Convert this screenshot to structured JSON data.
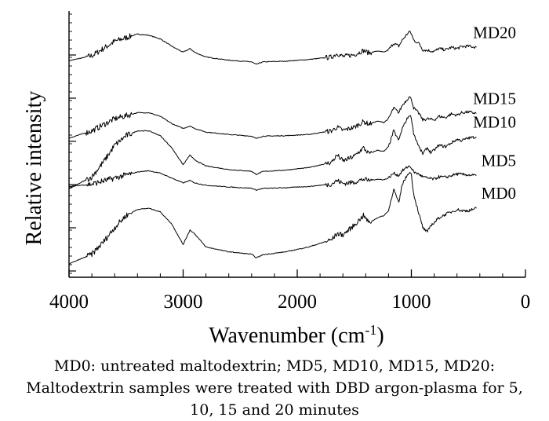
{
  "chart_data": {
    "type": "line",
    "xlabel": "Wavenumber (cm",
    "xlabel_superscript": "-1",
    "xlabel_suffix": ")",
    "ylabel": "Relative intensity",
    "xlim": [
      4000,
      0
    ],
    "x_reversed": true,
    "xticks": [
      4000,
      3000,
      2000,
      1000,
      0
    ],
    "y_units": "relative (arbitrary, stacked with offsets)",
    "grid": false,
    "legend": "none (series labelled directly at right end of each trace)",
    "series": [
      {
        "name": "MD20",
        "color": "#000000",
        "points": [
          [
            4000,
            0.84
          ],
          [
            3800,
            0.86
          ],
          [
            3600,
            0.92
          ],
          [
            3400,
            0.95
          ],
          [
            3300,
            0.945
          ],
          [
            3200,
            0.93
          ],
          [
            3100,
            0.9
          ],
          [
            3000,
            0.875
          ],
          [
            2940,
            0.89
          ],
          [
            2900,
            0.875
          ],
          [
            2800,
            0.855
          ],
          [
            2600,
            0.842
          ],
          [
            2400,
            0.835
          ],
          [
            2360,
            0.825
          ],
          [
            2300,
            0.835
          ],
          [
            2100,
            0.838
          ],
          [
            1900,
            0.845
          ],
          [
            1700,
            0.855
          ],
          [
            1650,
            0.87
          ],
          [
            1600,
            0.857
          ],
          [
            1500,
            0.865
          ],
          [
            1420,
            0.882
          ],
          [
            1370,
            0.872
          ],
          [
            1300,
            0.88
          ],
          [
            1240,
            0.875
          ],
          [
            1200,
            0.885
          ],
          [
            1155,
            0.912
          ],
          [
            1110,
            0.9
          ],
          [
            1080,
            0.925
          ],
          [
            1020,
            0.96
          ],
          [
            1000,
            0.952
          ],
          [
            980,
            0.925
          ],
          [
            930,
            0.91
          ],
          [
            900,
            0.885
          ],
          [
            860,
            0.883
          ],
          [
            800,
            0.878
          ],
          [
            760,
            0.89
          ],
          [
            700,
            0.885
          ],
          [
            650,
            0.895
          ],
          [
            600,
            0.89
          ],
          [
            560,
            0.898
          ],
          [
            500,
            0.9
          ],
          [
            430,
            0.895
          ]
        ]
      },
      {
        "name": "MD15",
        "color": "#000000",
        "points": [
          [
            4000,
            0.52
          ],
          [
            3800,
            0.55
          ],
          [
            3600,
            0.6
          ],
          [
            3400,
            0.625
          ],
          [
            3300,
            0.625
          ],
          [
            3200,
            0.61
          ],
          [
            3100,
            0.58
          ],
          [
            3000,
            0.56
          ],
          [
            2940,
            0.57
          ],
          [
            2900,
            0.56
          ],
          [
            2800,
            0.545
          ],
          [
            2600,
            0.535
          ],
          [
            2400,
            0.528
          ],
          [
            2360,
            0.518
          ],
          [
            2300,
            0.528
          ],
          [
            2100,
            0.53
          ],
          [
            1900,
            0.535
          ],
          [
            1700,
            0.55
          ],
          [
            1650,
            0.565
          ],
          [
            1600,
            0.552
          ],
          [
            1500,
            0.565
          ],
          [
            1420,
            0.588
          ],
          [
            1370,
            0.578
          ],
          [
            1300,
            0.59
          ],
          [
            1240,
            0.585
          ],
          [
            1200,
            0.6
          ],
          [
            1155,
            0.645
          ],
          [
            1110,
            0.625
          ],
          [
            1080,
            0.655
          ],
          [
            1020,
            0.69
          ],
          [
            1000,
            0.682
          ],
          [
            980,
            0.645
          ],
          [
            930,
            0.62
          ],
          [
            900,
            0.595
          ],
          [
            860,
            0.6
          ],
          [
            800,
            0.595
          ],
          [
            760,
            0.61
          ],
          [
            700,
            0.605
          ],
          [
            650,
            0.62
          ],
          [
            600,
            0.615
          ],
          [
            560,
            0.625
          ],
          [
            500,
            0.628
          ],
          [
            430,
            0.622
          ]
        ]
      },
      {
        "name": "MD10",
        "color": "#000000",
        "points": [
          [
            4000,
            0.31
          ],
          [
            3800,
            0.36
          ],
          [
            3700,
            0.42
          ],
          [
            3600,
            0.49
          ],
          [
            3500,
            0.53
          ],
          [
            3400,
            0.55
          ],
          [
            3300,
            0.55
          ],
          [
            3200,
            0.53
          ],
          [
            3100,
            0.48
          ],
          [
            3000,
            0.41
          ],
          [
            2940,
            0.45
          ],
          [
            2900,
            0.43
          ],
          [
            2800,
            0.405
          ],
          [
            2600,
            0.39
          ],
          [
            2400,
            0.383
          ],
          [
            2360,
            0.37
          ],
          [
            2300,
            0.382
          ],
          [
            2100,
            0.388
          ],
          [
            1900,
            0.398
          ],
          [
            1700,
            0.42
          ],
          [
            1650,
            0.45
          ],
          [
            1600,
            0.425
          ],
          [
            1500,
            0.445
          ],
          [
            1420,
            0.48
          ],
          [
            1370,
            0.455
          ],
          [
            1300,
            0.47
          ],
          [
            1240,
            0.465
          ],
          [
            1200,
            0.485
          ],
          [
            1155,
            0.55
          ],
          [
            1110,
            0.51
          ],
          [
            1080,
            0.56
          ],
          [
            1020,
            0.615
          ],
          [
            1000,
            0.605
          ],
          [
            980,
            0.54
          ],
          [
            930,
            0.48
          ],
          [
            900,
            0.455
          ],
          [
            860,
            0.48
          ],
          [
            830,
            0.46
          ],
          [
            800,
            0.47
          ],
          [
            760,
            0.49
          ],
          [
            700,
            0.485
          ],
          [
            650,
            0.5
          ],
          [
            600,
            0.515
          ],
          [
            560,
            0.51
          ],
          [
            500,
            0.52
          ],
          [
            430,
            0.525
          ]
        ]
      },
      {
        "name": "MD5",
        "color": "#000000",
        "points": [
          [
            4000,
            0.32
          ],
          [
            3800,
            0.33
          ],
          [
            3600,
            0.355
          ],
          [
            3400,
            0.38
          ],
          [
            3300,
            0.385
          ],
          [
            3200,
            0.375
          ],
          [
            3100,
            0.355
          ],
          [
            3000,
            0.335
          ],
          [
            2940,
            0.345
          ],
          [
            2900,
            0.335
          ],
          [
            2800,
            0.325
          ],
          [
            2600,
            0.318
          ],
          [
            2400,
            0.313
          ],
          [
            2360,
            0.305
          ],
          [
            2300,
            0.312
          ],
          [
            2100,
            0.315
          ],
          [
            1900,
            0.32
          ],
          [
            1700,
            0.33
          ],
          [
            1650,
            0.345
          ],
          [
            1600,
            0.332
          ],
          [
            1500,
            0.338
          ],
          [
            1420,
            0.35
          ],
          [
            1370,
            0.345
          ],
          [
            1300,
            0.35
          ],
          [
            1240,
            0.348
          ],
          [
            1200,
            0.355
          ],
          [
            1155,
            0.375
          ],
          [
            1110,
            0.365
          ],
          [
            1080,
            0.385
          ],
          [
            1020,
            0.405
          ],
          [
            1000,
            0.398
          ],
          [
            980,
            0.38
          ],
          [
            930,
            0.37
          ],
          [
            900,
            0.36
          ],
          [
            860,
            0.355
          ],
          [
            800,
            0.35
          ],
          [
            760,
            0.36
          ],
          [
            700,
            0.358
          ],
          [
            650,
            0.365
          ],
          [
            600,
            0.372
          ],
          [
            560,
            0.37
          ],
          [
            500,
            0.368
          ],
          [
            430,
            0.365
          ]
        ]
      },
      {
        "name": "MD0",
        "color": "#000000",
        "points": [
          [
            4000,
            0.0
          ],
          [
            3800,
            0.04
          ],
          [
            3700,
            0.09
          ],
          [
            3600,
            0.15
          ],
          [
            3500,
            0.2
          ],
          [
            3400,
            0.225
          ],
          [
            3300,
            0.23
          ],
          [
            3200,
            0.215
          ],
          [
            3100,
            0.165
          ],
          [
            3000,
            0.08
          ],
          [
            2940,
            0.14
          ],
          [
            2900,
            0.125
          ],
          [
            2800,
            0.07
          ],
          [
            2600,
            0.05
          ],
          [
            2400,
            0.04
          ],
          [
            2360,
            0.025
          ],
          [
            2300,
            0.038
          ],
          [
            2100,
            0.05
          ],
          [
            1900,
            0.07
          ],
          [
            1700,
            0.1
          ],
          [
            1650,
            0.125
          ],
          [
            1600,
            0.12
          ],
          [
            1500,
            0.16
          ],
          [
            1420,
            0.2
          ],
          [
            1370,
            0.17
          ],
          [
            1300,
            0.19
          ],
          [
            1240,
            0.2
          ],
          [
            1200,
            0.22
          ],
          [
            1155,
            0.31
          ],
          [
            1110,
            0.25
          ],
          [
            1080,
            0.33
          ],
          [
            1020,
            0.38
          ],
          [
            1000,
            0.37
          ],
          [
            980,
            0.29
          ],
          [
            930,
            0.2
          ],
          [
            900,
            0.15
          ],
          [
            860,
            0.13
          ],
          [
            830,
            0.16
          ],
          [
            800,
            0.17
          ],
          [
            760,
            0.19
          ],
          [
            700,
            0.205
          ],
          [
            650,
            0.215
          ],
          [
            600,
            0.225
          ],
          [
            560,
            0.22
          ],
          [
            500,
            0.22
          ],
          [
            430,
            0.23
          ]
        ]
      }
    ]
  },
  "caption": {
    "line1": "MD0: untreated maltodextrin; MD5, MD10, MD15, MD20:",
    "line2": "Maltodextrin samples were treated with DBD argon-plasma for 5,",
    "line3": "10, 15 and 20 minutes"
  }
}
